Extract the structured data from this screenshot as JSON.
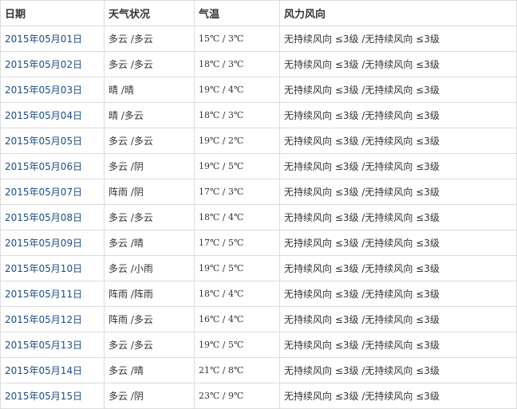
{
  "headers": [
    "日期",
    "天气状况",
    "气温",
    "风力风向"
  ],
  "rows": [
    {
      "date": "2015年05月01日",
      "weather": "多云 /多云",
      "temp": "15℃ / 3℃",
      "wind": "无持续风向 ≤3级 /无持续风向 ≤3级"
    },
    {
      "date": "2015年05月02日",
      "weather": "多云 /多云",
      "temp": "18℃ / 3℃",
      "wind": "无持续风向 ≤3级 /无持续风向 ≤3级"
    },
    {
      "date": "2015年05月03日",
      "weather": "晴 /晴",
      "temp": "19℃ / 4℃",
      "wind": "无持续风向 ≤3级 /无持续风向 ≤3级"
    },
    {
      "date": "2015年05月04日",
      "weather": "晴 /多云",
      "temp": "18℃ / 3℃",
      "wind": "无持续风向 ≤3级 /无持续风向 ≤3级"
    },
    {
      "date": "2015年05月05日",
      "weather": "多云 /多云",
      "temp": "19℃ / 2℃",
      "wind": "无持续风向 ≤3级 /无持续风向 ≤3级"
    },
    {
      "date": "2015年05月06日",
      "weather": "多云 /阴",
      "temp": "19℃ / 5℃",
      "wind": "无持续风向 ≤3级 /无持续风向 ≤3级"
    },
    {
      "date": "2015年05月07日",
      "weather": "阵雨 /阴",
      "temp": "17℃ / 3℃",
      "wind": "无持续风向 ≤3级 /无持续风向 ≤3级"
    },
    {
      "date": "2015年05月08日",
      "weather": "多云 /多云",
      "temp": "18℃ / 4℃",
      "wind": "无持续风向 ≤3级 /无持续风向 ≤3级"
    },
    {
      "date": "2015年05月09日",
      "weather": "多云 /晴",
      "temp": "17℃ / 5℃",
      "wind": "无持续风向 ≤3级 /无持续风向 ≤3级"
    },
    {
      "date": "2015年05月10日",
      "weather": "多云 /小雨",
      "temp": "19℃ / 5℃",
      "wind": "无持续风向 ≤3级 /无持续风向 ≤3级"
    },
    {
      "date": "2015年05月11日",
      "weather": "阵雨 /阵雨",
      "temp": "18℃ / 4℃",
      "wind": "无持续风向 ≤3级 /无持续风向 ≤3级"
    },
    {
      "date": "2015年05月12日",
      "weather": "阵雨 /多云",
      "temp": "16℃ / 4℃",
      "wind": "无持续风向 ≤3级 /无持续风向 ≤3级"
    },
    {
      "date": "2015年05月13日",
      "weather": "多云 /多云",
      "temp": "19℃ / 5℃",
      "wind": "无持续风向 ≤3级 /无持续风向 ≤3级"
    },
    {
      "date": "2015年05月14日",
      "weather": "多云 /晴",
      "temp": "21℃ / 8℃",
      "wind": "无持续风向 ≤3级 /无持续风向 ≤3级"
    },
    {
      "date": "2015年05月15日",
      "weather": "多云 /阴",
      "temp": "23℃ / 9℃",
      "wind": "无持续风向 ≤3级 /无持续风向 ≤3级"
    }
  ]
}
